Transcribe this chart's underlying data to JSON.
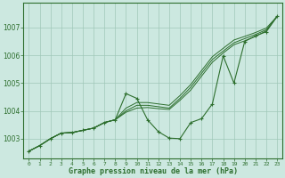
{
  "title": "Graphe pression niveau de la mer (hPa)",
  "bg_color": "#cce8e0",
  "grid_color": "#a0c8b8",
  "line_color": "#2d6e2d",
  "xlim": [
    -0.5,
    23.5
  ],
  "ylim": [
    1002.3,
    1007.9
  ],
  "yticks": [
    1003,
    1004,
    1005,
    1006,
    1007
  ],
  "xticks": [
    0,
    1,
    2,
    3,
    4,
    5,
    6,
    7,
    8,
    9,
    10,
    11,
    12,
    13,
    14,
    15,
    16,
    17,
    18,
    19,
    20,
    21,
    22,
    23
  ],
  "main_series": [
    1002.55,
    1002.75,
    1003.0,
    1003.2,
    1003.22,
    1003.3,
    1003.38,
    1003.58,
    1003.68,
    1004.62,
    1004.45,
    1003.68,
    1003.25,
    1003.02,
    1003.0,
    1003.58,
    1003.72,
    1004.25,
    1005.98,
    1005.0,
    1006.5,
    1006.7,
    1006.85,
    1007.4
  ],
  "smooth_series1": [
    1002.55,
    1002.75,
    1003.0,
    1003.2,
    1003.22,
    1003.3,
    1003.38,
    1003.58,
    1003.68,
    1004.1,
    1004.3,
    1004.3,
    1004.25,
    1004.2,
    1004.55,
    1004.95,
    1005.45,
    1005.95,
    1006.25,
    1006.55,
    1006.68,
    1006.82,
    1006.98,
    1007.4
  ],
  "smooth_series2": [
    1002.55,
    1002.75,
    1003.0,
    1003.2,
    1003.22,
    1003.3,
    1003.38,
    1003.58,
    1003.68,
    1004.0,
    1004.2,
    1004.2,
    1004.15,
    1004.1,
    1004.45,
    1004.85,
    1005.35,
    1005.85,
    1006.15,
    1006.45,
    1006.6,
    1006.75,
    1006.92,
    1007.4
  ],
  "smooth_series3": [
    1002.55,
    1002.75,
    1003.0,
    1003.2,
    1003.22,
    1003.3,
    1003.38,
    1003.58,
    1003.68,
    1003.95,
    1004.1,
    1004.12,
    1004.08,
    1004.05,
    1004.38,
    1004.75,
    1005.25,
    1005.75,
    1006.08,
    1006.38,
    1006.52,
    1006.68,
    1006.88,
    1007.4
  ]
}
